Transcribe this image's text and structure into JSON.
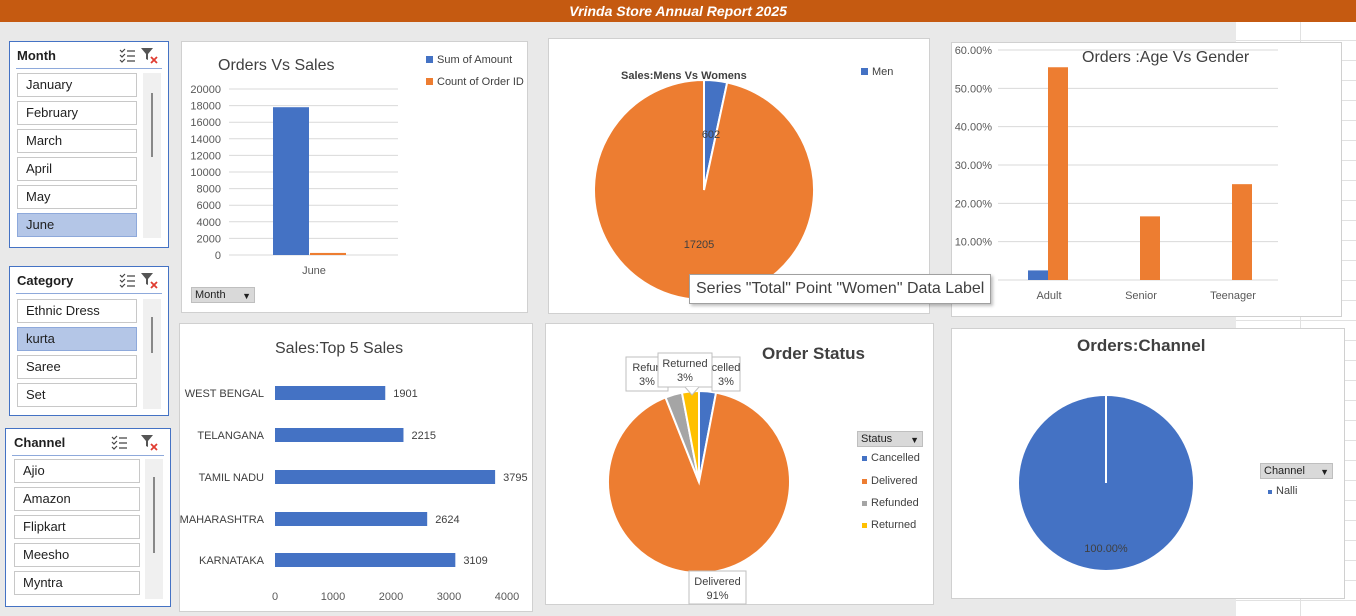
{
  "report_title": "Vrinda Store Annual Report 2025",
  "slicers": {
    "month": {
      "title": "Month",
      "items": [
        "January",
        "February",
        "March",
        "April",
        "May",
        "June"
      ],
      "selected": "June"
    },
    "category": {
      "title": "Category",
      "items": [
        "Ethnic Dress",
        "kurta",
        "Saree",
        "Set"
      ],
      "selected": "kurta"
    },
    "channel": {
      "title": "Channel",
      "items": [
        "Ajio",
        "Amazon",
        "Flipkart",
        "Meesho",
        "Myntra"
      ],
      "selected": ""
    }
  },
  "tooltip": "Series \"Total\" Point \"Women\" Data Label",
  "colors": {
    "blue": "#4472c4",
    "orange": "#ed7d31",
    "gray": "#a5a5a5",
    "yellow": "#ffc000",
    "header": "#c55a11"
  },
  "chart_data": [
    {
      "id": "orders_vs_sales",
      "type": "bar",
      "title": "Orders Vs Sales",
      "categories": [
        "June"
      ],
      "series": [
        {
          "name": "Sum of Amount",
          "values": [
            17807
          ]
        },
        {
          "name": "Count of Order ID",
          "values": [
            250
          ]
        }
      ],
      "ylim": [
        0,
        20000
      ],
      "yticks": [
        "0",
        "2000",
        "4000",
        "6000",
        "8000",
        "10000",
        "12000",
        "14000",
        "16000",
        "18000",
        "20000"
      ],
      "legend": "top-right",
      "filter_button": "Month"
    },
    {
      "id": "sales_men_women",
      "type": "pie",
      "title": "Sales:Mens Vs Womens",
      "labels": [
        "Men",
        "Women"
      ],
      "values": [
        602,
        17205
      ],
      "legend": [
        "Men"
      ]
    },
    {
      "id": "age_gender",
      "type": "bar",
      "title": "Orders :Age Vs Gender",
      "categories": [
        "Adult",
        "Senior",
        "Teenager"
      ],
      "series": [
        {
          "values": [
            0.025,
            null,
            null
          ]
        },
        {
          "values": [
            0.555,
            0.166,
            0.25
          ]
        }
      ],
      "ylim": [
        0,
        0.6
      ],
      "yticks": [
        "10.00%",
        "20.00%",
        "30.00%",
        "40.00%",
        "50.00%",
        "60.00%"
      ]
    },
    {
      "id": "top5_sales",
      "type": "bar",
      "title": "Sales:Top 5 Sales",
      "orientation": "horizontal",
      "categories": [
        "WEST BENGAL",
        "TELANGANA",
        "TAMIL NADU",
        "MAHARASHTRA",
        "KARNATAKA"
      ],
      "values": [
        1901,
        2215,
        3795,
        2624,
        3109
      ],
      "xlim": [
        0,
        4000
      ],
      "xticks": [
        "0",
        "1000",
        "2000",
        "3000",
        "4000"
      ]
    },
    {
      "id": "order_status",
      "type": "pie",
      "title": "Order Status",
      "labels": [
        "Cancelled",
        "Delivered",
        "Refunded",
        "Returned"
      ],
      "values": [
        0.03,
        0.91,
        0.03,
        0.03
      ],
      "data_labels": [
        {
          "name": "Refunded",
          "pct": "3%"
        },
        {
          "name": "Returned",
          "pct": "3%"
        },
        {
          "name": "Cancelled",
          "pct": "3%"
        },
        {
          "name": "Delivered",
          "pct": "91%"
        }
      ],
      "filter_button": "Status",
      "legend": [
        "Cancelled",
        "Delivered",
        "Refunded",
        "Returned"
      ]
    },
    {
      "id": "orders_channel",
      "type": "pie",
      "title": "Orders:Channel",
      "labels": [
        "Nalli"
      ],
      "values": [
        1.0
      ],
      "data_label": "100.00%",
      "filter_button": "Channel",
      "legend": [
        "Nalli"
      ]
    }
  ]
}
